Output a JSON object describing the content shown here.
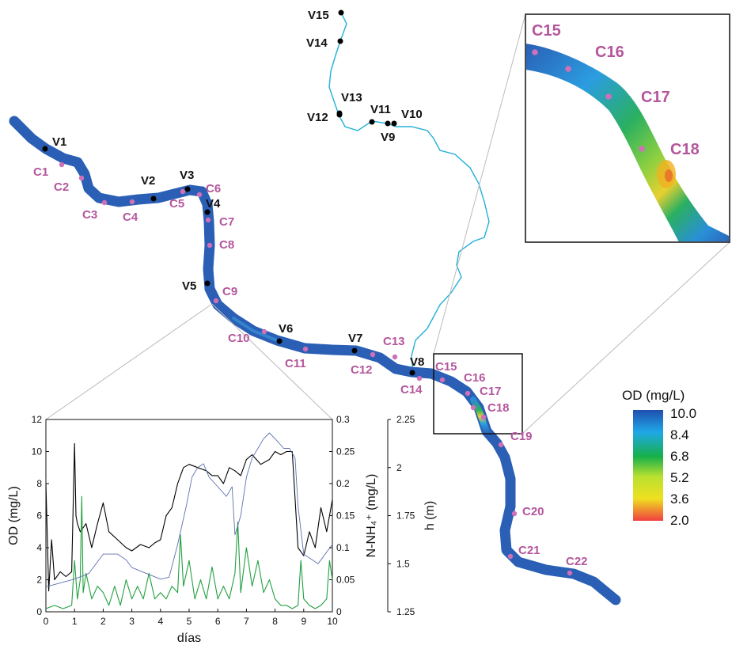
{
  "map": {
    "vertedouros": [
      "V1",
      "V2",
      "V3",
      "V4",
      "V5",
      "V6",
      "V7",
      "V8",
      "V9",
      "V10",
      "V11",
      "V12",
      "V13",
      "V14",
      "V15"
    ],
    "control_points": [
      "C1",
      "C2",
      "C3",
      "C4",
      "C5",
      "C6",
      "C7",
      "C8",
      "C9",
      "C10",
      "C11",
      "C12",
      "C13",
      "C14",
      "C15",
      "C16",
      "C17",
      "C18",
      "C19",
      "C20",
      "C21",
      "C22"
    ],
    "inset_points": [
      "C15",
      "C16",
      "C17",
      "C18"
    ],
    "colors": {
      "river_main": "#2a5fb5",
      "tributary": "#22b0d8",
      "point": "#d070b8",
      "point_label": "#b4569c",
      "vertedouro": "#000000"
    }
  },
  "legend": {
    "title": "OD (mg/L)",
    "ticks": [
      "10.0",
      "8.4",
      "6.8",
      "5.2",
      "3.6",
      "2.0"
    ],
    "colors": [
      "#1f4fb0",
      "#1fa8e8",
      "#17b04a",
      "#b8e030",
      "#f0e020",
      "#f04040"
    ]
  },
  "chart_data": {
    "type": "line",
    "xlabel": "días",
    "x_ticks": [
      "0",
      "1",
      "2",
      "3",
      "4",
      "5",
      "6",
      "7",
      "8",
      "9",
      "10"
    ],
    "xlim": [
      0,
      10
    ],
    "axes": [
      {
        "label": "OD (mg/L)",
        "ylim": [
          0,
          12
        ],
        "ticks": [
          "0",
          "2",
          "4",
          "6",
          "8",
          "10",
          "12"
        ],
        "color": "#000000"
      },
      {
        "label": "N-NH₄⁺ (mg/L)",
        "ylim": [
          0,
          0.3
        ],
        "ticks": [
          "0",
          "0.05",
          "0.1",
          "0.15",
          "0.2",
          "0.25",
          "0.3"
        ],
        "color": "#22a040"
      },
      {
        "label": "h (m)",
        "ylim": [
          1.25,
          2.25
        ],
        "ticks": [
          "1.25",
          "1.5",
          "1.75",
          "2",
          "2.25"
        ],
        "color": "#5a6aaa"
      }
    ],
    "series": [
      {
        "axis": 0,
        "color": "#000000",
        "x": [
          0,
          0.1,
          0.2,
          0.3,
          0.5,
          0.7,
          0.9,
          1.0,
          1.05,
          1.1,
          1.2,
          1.4,
          1.6,
          1.8,
          2.0,
          2.2,
          2.5,
          2.8,
          3.0,
          3.3,
          3.6,
          3.8,
          4.0,
          4.2,
          4.4,
          4.6,
          4.8,
          5.0,
          5.3,
          5.6,
          5.8,
          6.0,
          6.2,
          6.4,
          6.6,
          6.8,
          7.0,
          7.2,
          7.5,
          7.8,
          8.0,
          8.2,
          8.4,
          8.6,
          8.8,
          9.0,
          9.2,
          9.4,
          9.6,
          9.8,
          10.0
        ],
        "y": [
          8.0,
          1.3,
          4.5,
          2.0,
          2.5,
          2.2,
          2.5,
          10.5,
          6.0,
          5.5,
          5.0,
          5.5,
          4.0,
          5.5,
          6.8,
          5.0,
          4.5,
          4.0,
          3.8,
          4.2,
          4.0,
          4.3,
          4.5,
          6.0,
          6.5,
          8.0,
          9.0,
          9.2,
          9.0,
          8.8,
          8.5,
          8.5,
          8.0,
          9.0,
          8.8,
          8.5,
          9.5,
          9.8,
          9.2,
          9.5,
          10.0,
          9.8,
          10.0,
          10.0,
          4.0,
          3.5,
          5.0,
          4.0,
          6.5,
          5.0,
          7.0
        ]
      },
      {
        "axis": 1,
        "color": "#22a040",
        "x": [
          0,
          0.3,
          0.6,
          0.9,
          1.0,
          1.1,
          1.2,
          1.25,
          1.3,
          1.4,
          1.6,
          1.8,
          2.0,
          2.2,
          2.4,
          2.6,
          2.8,
          3.0,
          3.2,
          3.4,
          3.6,
          3.8,
          4.0,
          4.2,
          4.4,
          4.6,
          4.7,
          4.8,
          5.0,
          5.2,
          5.4,
          5.6,
          5.8,
          6.0,
          6.2,
          6.4,
          6.6,
          6.7,
          6.8,
          7.0,
          7.2,
          7.4,
          7.6,
          7.8,
          8.0,
          8.2,
          8.4,
          8.6,
          8.8,
          8.9,
          9.0,
          9.2,
          9.4,
          9.6,
          9.8,
          9.9,
          10.0
        ],
        "y": [
          0.005,
          0.01,
          0.005,
          0.01,
          0.08,
          0.02,
          0.05,
          0.18,
          0.03,
          0.06,
          0.02,
          0.04,
          0.03,
          0.01,
          0.04,
          0.01,
          0.05,
          0.02,
          0.04,
          0.02,
          0.06,
          0.02,
          0.03,
          0.02,
          0.04,
          0.03,
          0.12,
          0.04,
          0.08,
          0.02,
          0.05,
          0.02,
          0.07,
          0.02,
          0.04,
          0.02,
          0.06,
          0.14,
          0.03,
          0.1,
          0.04,
          0.08,
          0.03,
          0.05,
          0.02,
          0.01,
          0.01,
          0.005,
          0.01,
          0.08,
          0.02,
          0.01,
          0.005,
          0.01,
          0.02,
          0.08,
          0.05
        ]
      },
      {
        "axis": 2,
        "color": "#6070b0",
        "x": [
          0,
          0.5,
          1.0,
          1.5,
          2.0,
          2.5,
          2.8,
          3.0,
          3.5,
          4.0,
          4.3,
          4.6,
          4.9,
          5.1,
          5.3,
          5.5,
          5.7,
          6.0,
          6.3,
          6.5,
          6.6,
          6.8,
          7.0,
          7.2,
          7.4,
          7.6,
          7.8,
          8.0,
          8.3,
          8.5,
          8.7,
          8.8,
          9.0,
          9.5,
          10.0
        ],
        "y": [
          1.38,
          1.4,
          1.42,
          1.45,
          1.55,
          1.55,
          1.52,
          1.48,
          1.45,
          1.42,
          1.43,
          1.6,
          1.8,
          1.95,
          2.0,
          2.02,
          1.95,
          1.9,
          1.85,
          1.9,
          1.65,
          1.75,
          1.95,
          2.05,
          2.1,
          2.15,
          2.18,
          2.15,
          2.1,
          2.1,
          2.05,
          1.8,
          1.55,
          1.5,
          1.6
        ]
      }
    ]
  }
}
